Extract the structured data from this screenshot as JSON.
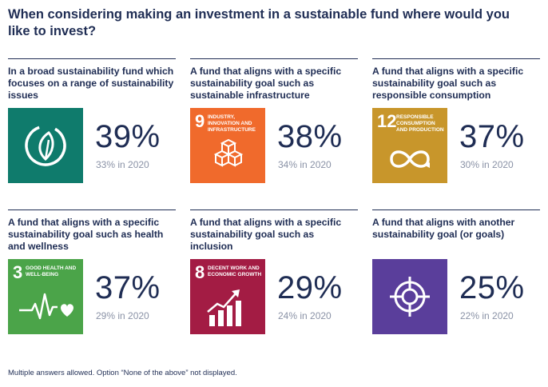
{
  "question": "When considering making an investment in a sustainable fund where would you like to invest?",
  "colors": {
    "navy": "#1f2d54",
    "teal": "#0f7b6c",
    "orange": "#f06a2c",
    "gold": "#c8962b",
    "green": "#4ba449",
    "crimson": "#a31c44",
    "purple": "#5a3e9b"
  },
  "cards": [
    {
      "label": "In a broad sustainability fund which focuses on a range of sustainability issues",
      "percent": "39%",
      "prior": "33% in 2020",
      "icon": "leaf-circle-icon"
    },
    {
      "label": "A fund that aligns with a specific sustainability goal such as sustainable infrastructure",
      "percent": "38%",
      "prior": "34% in 2020",
      "icon": "sdg-9-cubes-icon",
      "goal_number": "9",
      "goal_title": "Industry, innovation and infrastructure"
    },
    {
      "label": "A fund that aligns with a specific sustainability goal such as responsible consumption",
      "percent": "37%",
      "prior": "30% in 2020",
      "icon": "sdg-12-infinity-icon",
      "goal_number": "12",
      "goal_title": "Responsible consumption and production"
    },
    {
      "label": "A fund that aligns with a specific sustainability goal such as health and wellness",
      "percent": "37%",
      "prior": "29% in 2020",
      "icon": "sdg-3-heartbeat-icon",
      "goal_number": "3",
      "goal_title": "Good health and well-being"
    },
    {
      "label": "A fund that aligns with a specific sustainability goal such as inclusion",
      "percent": "29%",
      "prior": "24% in 2020",
      "icon": "sdg-8-growth-chart-icon",
      "goal_number": "8",
      "goal_title": "Decent work and economic growth"
    },
    {
      "label": "A fund that aligns with another sustainability goal (or goals)",
      "percent": "25%",
      "prior": "22% in 2020",
      "icon": "target-crosshair-icon"
    }
  ],
  "footnote": "Multiple answers allowed. Option “None of the above” not displayed."
}
